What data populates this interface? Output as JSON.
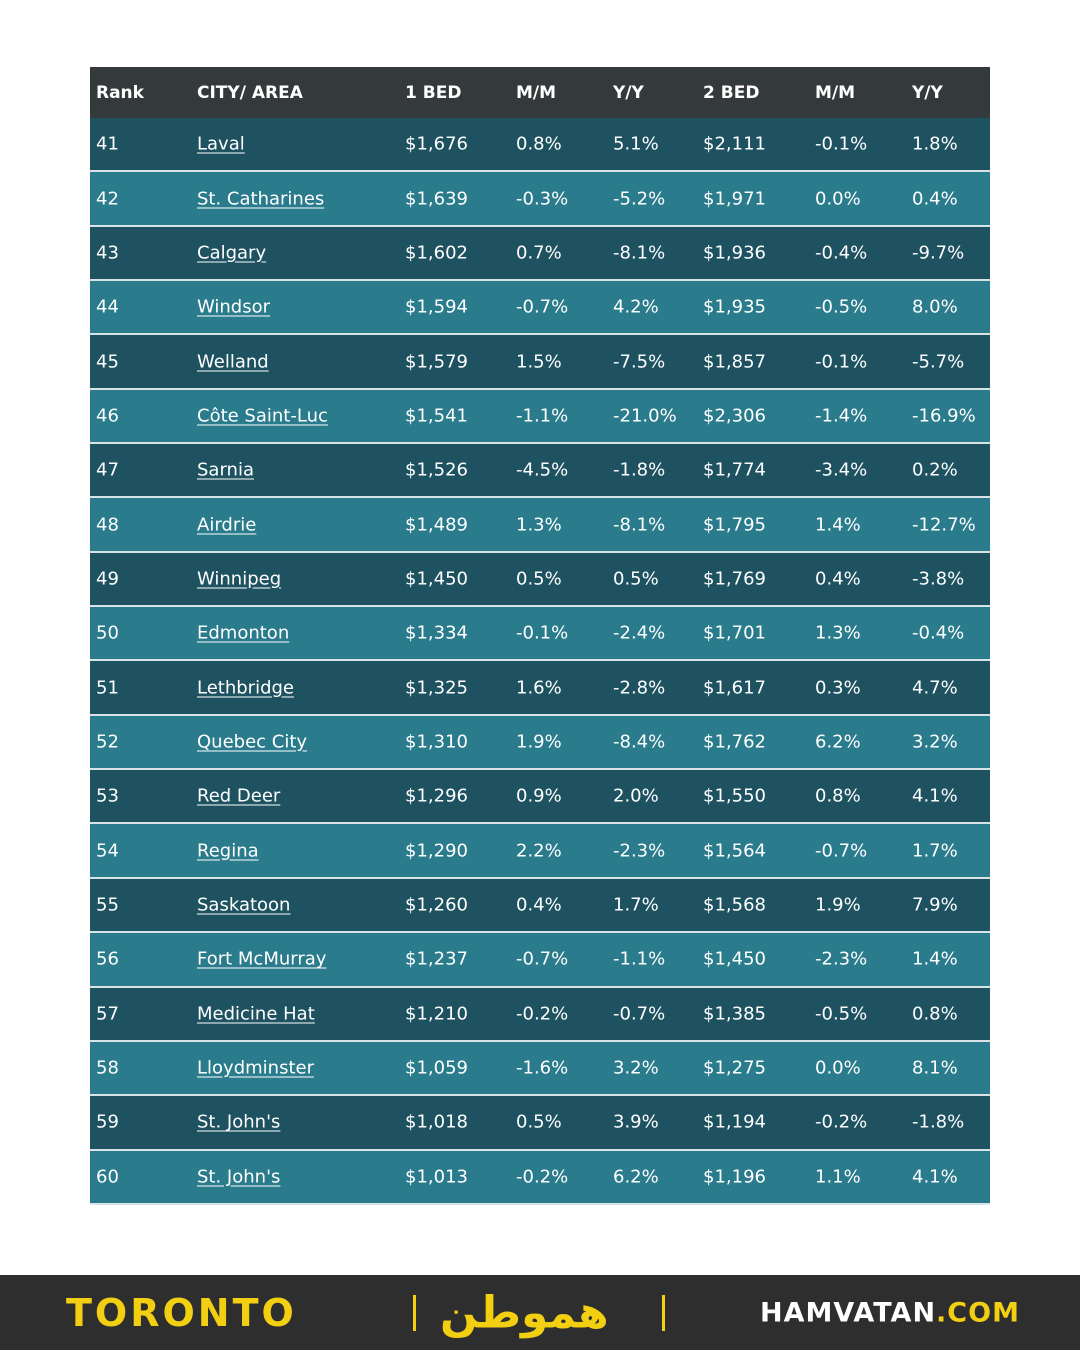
{
  "table": {
    "columns": [
      "Rank",
      "CITY/ AREA",
      "1 BED",
      "M/M",
      "Y/Y",
      "2 BED",
      "M/M",
      "Y/Y"
    ],
    "rows": [
      [
        "41",
        "Laval",
        "$1,676",
        "0.8%",
        "5.1%",
        "$2,111",
        "-0.1%",
        "1.8%"
      ],
      [
        "42",
        "St. Catharines",
        "$1,639",
        "-0.3%",
        "-5.2%",
        "$1,971",
        "0.0%",
        "0.4%"
      ],
      [
        "43",
        "Calgary",
        "$1,602",
        "0.7%",
        "-8.1%",
        "$1,936",
        "-0.4%",
        "-9.7%"
      ],
      [
        "44",
        "Windsor",
        "$1,594",
        "-0.7%",
        "4.2%",
        "$1,935",
        "-0.5%",
        "8.0%"
      ],
      [
        "45",
        "Welland",
        "$1,579",
        "1.5%",
        "-7.5%",
        "$1,857",
        "-0.1%",
        "-5.7%"
      ],
      [
        "46",
        "Côte Saint-Luc",
        "$1,541",
        "-1.1%",
        "-21.0%",
        "$2,306",
        "-1.4%",
        "-16.9%"
      ],
      [
        "47",
        "Sarnia",
        "$1,526",
        "-4.5%",
        "-1.8%",
        "$1,774",
        "-3.4%",
        "0.2%"
      ],
      [
        "48",
        "Airdrie",
        "$1,489",
        "1.3%",
        "-8.1%",
        "$1,795",
        "1.4%",
        "-12.7%"
      ],
      [
        "49",
        "Winnipeg",
        "$1,450",
        "0.5%",
        "0.5%",
        "$1,769",
        "0.4%",
        "-3.8%"
      ],
      [
        "50",
        "Edmonton",
        "$1,334",
        "-0.1%",
        "-2.4%",
        "$1,701",
        "1.3%",
        "-0.4%"
      ],
      [
        "51",
        "Lethbridge",
        "$1,325",
        "1.6%",
        "-2.8%",
        "$1,617",
        "0.3%",
        "4.7%"
      ],
      [
        "52",
        "Quebec City",
        "$1,310",
        "1.9%",
        "-8.4%",
        "$1,762",
        "6.2%",
        "3.2%"
      ],
      [
        "53",
        "Red Deer",
        "$1,296",
        "0.9%",
        "2.0%",
        "$1,550",
        "0.8%",
        "4.1%"
      ],
      [
        "54",
        "Regina",
        "$1,290",
        "2.2%",
        "-2.3%",
        "$1,564",
        "-0.7%",
        "1.7%"
      ],
      [
        "55",
        "Saskatoon",
        "$1,260",
        "0.4%",
        "1.7%",
        "$1,568",
        "1.9%",
        "7.9%"
      ],
      [
        "56",
        "Fort McMurray",
        "$1,237",
        "-0.7%",
        "-1.1%",
        "$1,450",
        "-2.3%",
        "1.4%"
      ],
      [
        "57",
        "Medicine Hat",
        "$1,210",
        "-0.2%",
        "-0.7%",
        "$1,385",
        "-0.5%",
        "0.8%"
      ],
      [
        "58",
        "Lloydminster",
        "$1,059",
        "-1.6%",
        "3.2%",
        "$1,275",
        "0.0%",
        "8.1%"
      ],
      [
        "59",
        "St. John's",
        "$1,018",
        "0.5%",
        "3.9%",
        "$1,194",
        "-0.2%",
        "-1.8%"
      ],
      [
        "60",
        "St. John's",
        "$1,013",
        "-0.2%",
        "6.2%",
        "$1,196",
        "1.1%",
        "4.1%"
      ]
    ]
  },
  "footer": {
    "city": "TORONTO",
    "logo": "هموطن",
    "site": "HAMVATAN",
    "domain": ".COM"
  }
}
